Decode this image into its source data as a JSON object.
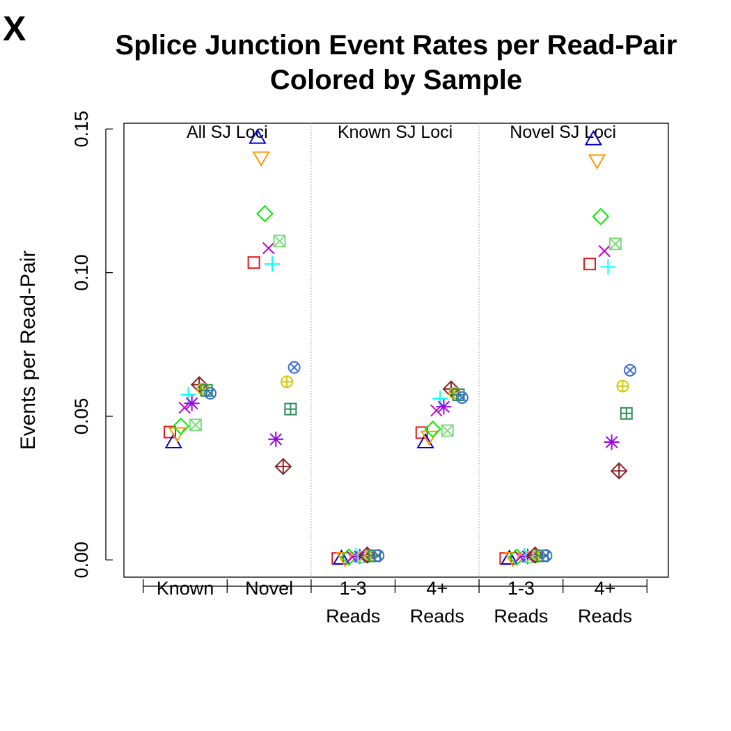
{
  "panel_letter": "X",
  "chart_data": {
    "type": "scatter",
    "title": [
      "Splice Junction Event Rates per Read-Pair",
      "Colored by Sample"
    ],
    "xlabel": "",
    "ylabel": "Events per Read-Pair",
    "ylim": [
      -0.006,
      0.152
    ],
    "yticks": [
      0.0,
      0.05,
      0.1,
      0.15
    ],
    "ytick_labels": [
      "0.00",
      "0.05",
      "0.10",
      "0.15"
    ],
    "grid": false,
    "legend": "none",
    "groups": [
      {
        "key": "known",
        "label": [
          "Known"
        ]
      },
      {
        "key": "novel",
        "label": [
          "Novel"
        ]
      },
      {
        "key": "known_1_3",
        "label": [
          "1-3",
          "Reads"
        ]
      },
      {
        "key": "known_4plus",
        "label": [
          "4+",
          "Reads"
        ]
      },
      {
        "key": "novel_1_3",
        "label": [
          "1-3",
          "Reads"
        ]
      },
      {
        "key": "novel_4plus",
        "label": [
          "4+",
          "Reads"
        ]
      }
    ],
    "panels": [
      {
        "label": "All SJ Loci",
        "groups": [
          "known",
          "novel"
        ]
      },
      {
        "label": "Known SJ Loci",
        "groups": [
          "known_1_3",
          "known_4plus"
        ]
      },
      {
        "label": "Novel SJ Loci",
        "groups": [
          "novel_1_3",
          "novel_4plus"
        ]
      }
    ],
    "series": [
      {
        "color": "#e41a1c",
        "marker": "square",
        "values": {
          "known": 0.0445,
          "novel": 0.1035,
          "known_1_3": 0.0005,
          "known_4plus": 0.0443,
          "novel_1_3": 0.0005,
          "novel_4plus": 0.103
        }
      },
      {
        "color": "#0000cc",
        "marker": "triangle-up",
        "values": {
          "known": 0.041,
          "novel": 0.147,
          "known_1_3": 0.0005,
          "known_4plus": 0.041,
          "novel_1_3": 0.0005,
          "novel_4plus": 0.1465
        }
      },
      {
        "color": "#ff9900",
        "marker": "triangle-down",
        "values": {
          "known": 0.044,
          "novel": 0.14,
          "known_1_3": 0.0005,
          "known_4plus": 0.0428,
          "novel_1_3": 0.0005,
          "novel_4plus": 0.139
        }
      },
      {
        "color": "#00ee00",
        "marker": "diamond",
        "values": {
          "known": 0.0465,
          "novel": 0.1205,
          "known_1_3": 0.001,
          "known_4plus": 0.0455,
          "novel_1_3": 0.001,
          "novel_4plus": 0.1195
        }
      },
      {
        "color": "#cc00cc",
        "marker": "x",
        "values": {
          "known": 0.053,
          "novel": 0.1085,
          "known_1_3": 0.001,
          "known_4plus": 0.052,
          "novel_1_3": 0.001,
          "novel_4plus": 0.1075
        }
      },
      {
        "color": "#00ffff",
        "marker": "plus",
        "values": {
          "known": 0.0575,
          "novel": 0.103,
          "known_1_3": 0.0015,
          "known_4plus": 0.0562,
          "novel_1_3": 0.0015,
          "novel_4plus": 0.102
        }
      },
      {
        "color": "#9900ee",
        "marker": "asterisk",
        "values": {
          "known": 0.0545,
          "novel": 0.042,
          "known_1_3": 0.0012,
          "known_4plus": 0.0533,
          "novel_1_3": 0.0012,
          "novel_4plus": 0.041
        }
      },
      {
        "color": "#7cdc7c",
        "marker": "boxed-x",
        "values": {
          "known": 0.047,
          "novel": 0.111,
          "known_1_3": 0.001,
          "known_4plus": 0.045,
          "novel_1_3": 0.001,
          "novel_4plus": 0.11
        }
      },
      {
        "color": "#8b2323",
        "marker": "circle-diamond",
        "values": {
          "known": 0.061,
          "novel": 0.0325,
          "known_1_3": 0.0017,
          "known_4plus": 0.0595,
          "novel_1_3": 0.0017,
          "novel_4plus": 0.031
        }
      },
      {
        "color": "#cccc00",
        "marker": "circle-plus",
        "values": {
          "known": 0.0595,
          "novel": 0.062,
          "known_1_3": 0.0015,
          "known_4plus": 0.058,
          "novel_1_3": 0.0015,
          "novel_4plus": 0.0605
        }
      },
      {
        "color": "#2e8b57",
        "marker": "boxed-plus",
        "values": {
          "known": 0.059,
          "novel": 0.0525,
          "known_1_3": 0.0014,
          "known_4plus": 0.0575,
          "novel_1_3": 0.0014,
          "novel_4plus": 0.051
        }
      },
      {
        "color": "#3a6ed0",
        "marker": "circle-x",
        "values": {
          "known": 0.058,
          "novel": 0.067,
          "known_1_3": 0.0015,
          "known_4plus": 0.0565,
          "novel_1_3": 0.0015,
          "novel_4plus": 0.066
        }
      }
    ]
  }
}
